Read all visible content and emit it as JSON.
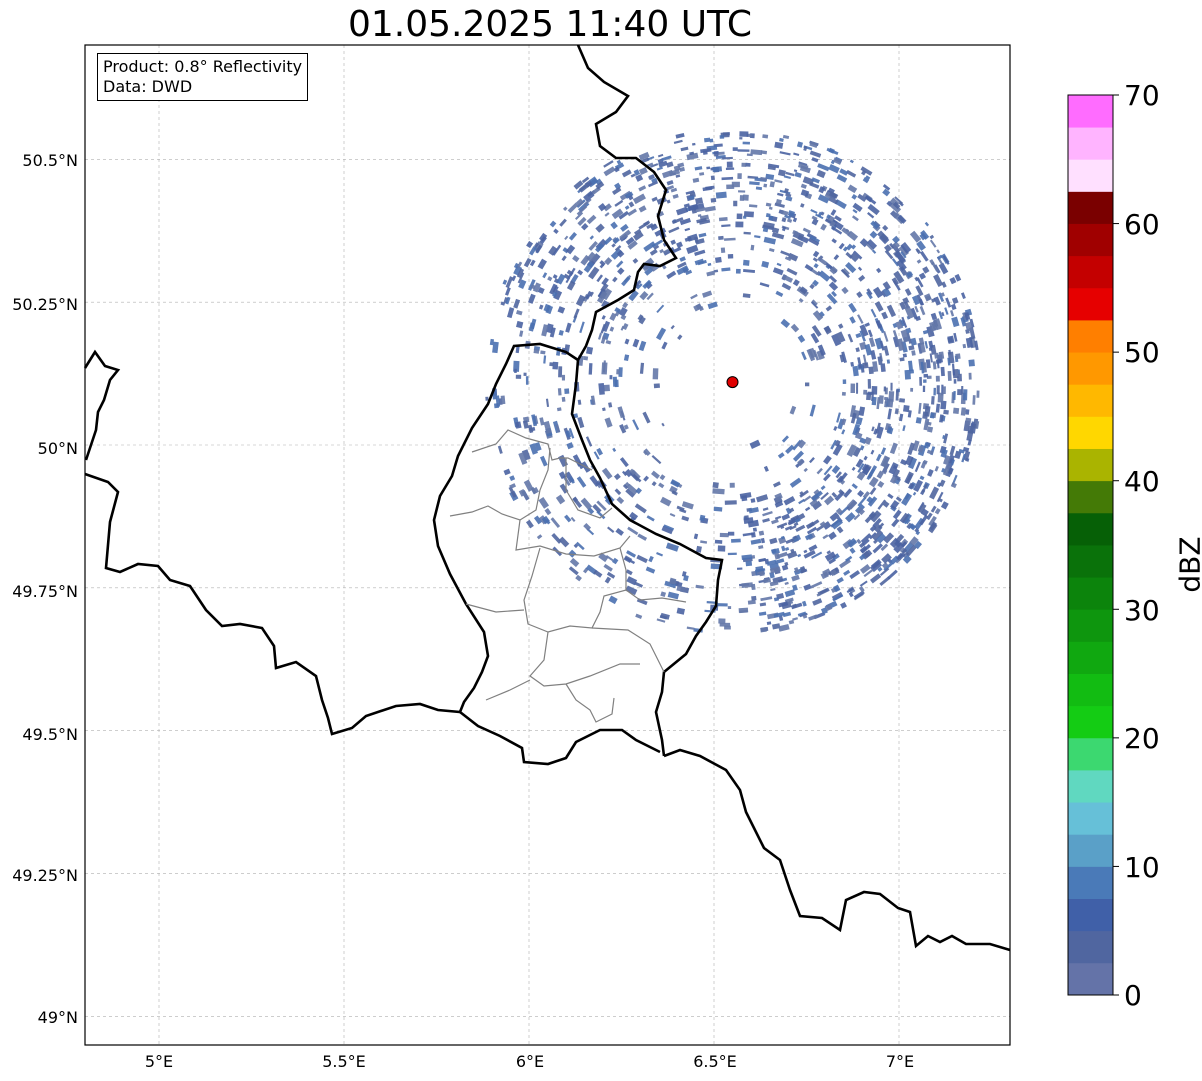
{
  "title": "01.05.2025 11:40 UTC",
  "info": {
    "product": "Product: 0.8° Reflectivity",
    "source": "Data: DWD"
  },
  "axes": {
    "lat_ticks": [
      "50.5°N",
      "50.25°N",
      "50°N",
      "49.75°N",
      "49.5°N",
      "49.25°N",
      "49°N"
    ],
    "lon_ticks": [
      "5°E",
      "5.5°E",
      "6°E",
      "6.5°E",
      "7°E"
    ],
    "lat_range": [
      48.95,
      50.7
    ],
    "lon_range": [
      4.8,
      7.3
    ],
    "grid": true
  },
  "radar_site": {
    "lon": 6.55,
    "lat": 50.11,
    "color": "#e00000"
  },
  "colorbar": {
    "label": "dBZ",
    "tick_labels": [
      "0",
      "10",
      "20",
      "30",
      "40",
      "50",
      "60",
      "70"
    ],
    "min": 0,
    "max": 70,
    "step": 2.5,
    "colors": [
      "#6473a8",
      "#5066a0",
      "#4060a8",
      "#4a7ab8",
      "#5aa0c8",
      "#66c0d8",
      "#60d8c0",
      "#3cd870",
      "#14cc14",
      "#12bc12",
      "#10a810",
      "#0e960e",
      "#0c840c",
      "#0a720a",
      "#066006",
      "#447a06",
      "#aab400",
      "#ffd700",
      "#ffb800",
      "#ff9800",
      "#ff7f00",
      "#e60000",
      "#c40000",
      "#a00000",
      "#7a0000",
      "#ffe0ff",
      "#ffb4ff",
      "#ff6cff",
      "#e836e8"
    ]
  },
  "echo_color": "#4a63a2"
}
